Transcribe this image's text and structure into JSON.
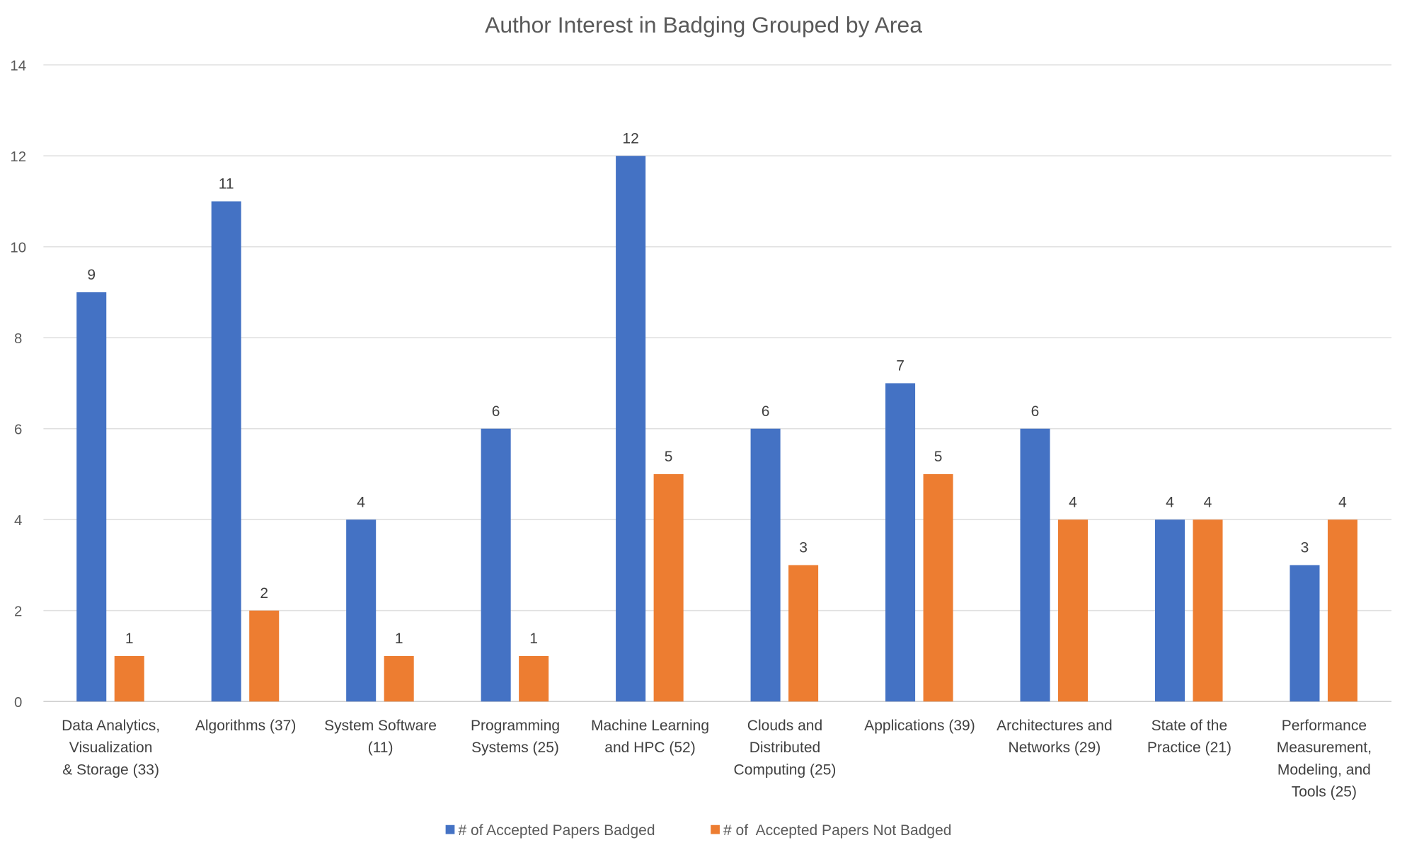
{
  "chart_data": {
    "type": "bar",
    "title": "Author Interest in Badging Grouped by Area",
    "xlabel": "",
    "ylabel": "",
    "ylim": [
      0,
      14
    ],
    "yticks": [
      0,
      2,
      4,
      6,
      8,
      10,
      12,
      14
    ],
    "grid": true,
    "legend_position": "bottom",
    "categories": [
      [
        "Data Analytics,",
        "Visualization",
        "& Storage (33)"
      ],
      [
        "Algorithms (37)"
      ],
      [
        "System Software",
        "(11)"
      ],
      [
        "Programming",
        "Systems (25)"
      ],
      [
        "Machine Learning",
        "and HPC (52)"
      ],
      [
        "Clouds and",
        "Distributed",
        "Computing (25)"
      ],
      [
        "Applications (39)"
      ],
      [
        "Architectures and",
        "Networks (29)"
      ],
      [
        "State of the",
        "Practice (21)"
      ],
      [
        "Performance",
        "Measurement,",
        "Modeling, and",
        "Tools (25)"
      ]
    ],
    "series": [
      {
        "name": "# of Accepted Papers Badged",
        "color": "#4472C4",
        "values": [
          9,
          11,
          4,
          6,
          12,
          6,
          7,
          6,
          4,
          3
        ]
      },
      {
        "name": "# of  Accepted Papers Not Badged",
        "color": "#ED7D31",
        "values": [
          1,
          2,
          1,
          1,
          5,
          3,
          5,
          4,
          4,
          4
        ]
      }
    ]
  }
}
